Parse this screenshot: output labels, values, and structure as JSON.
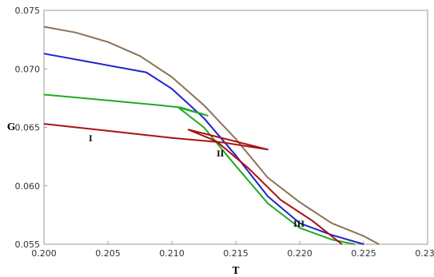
{
  "chart_data": {
    "type": "line",
    "title": "",
    "xlabel": "T",
    "ylabel": "G",
    "xlim": [
      0.2,
      0.23
    ],
    "ylim": [
      0.055,
      0.075
    ],
    "xticks": [
      "0.200",
      "0.205",
      "0.210",
      "0.215",
      "0.220",
      "0.225",
      "0.230"
    ],
    "yticks": [
      "0.055",
      "0.060",
      "0.065",
      "0.070",
      "0.075"
    ],
    "grid": false,
    "legend": "none",
    "annotations": [
      {
        "text": "I",
        "x": 0.2035,
        "y": 0.0638
      },
      {
        "text": "II",
        "x": 0.2135,
        "y": 0.0625
      },
      {
        "text": "III",
        "x": 0.2195,
        "y": 0.0565
      }
    ],
    "series": [
      {
        "color": "#8B7355",
        "points": [
          [
            0.2,
            0.0736
          ],
          [
            0.2025,
            0.0731
          ],
          [
            0.205,
            0.0723
          ],
          [
            0.2075,
            0.0711
          ],
          [
            0.21,
            0.0693
          ],
          [
            0.2125,
            0.0669
          ],
          [
            0.215,
            0.064
          ],
          [
            0.2175,
            0.0607
          ],
          [
            0.22,
            0.0586
          ],
          [
            0.2225,
            0.0568
          ],
          [
            0.225,
            0.0557
          ],
          [
            0.2262,
            0.055
          ]
        ]
      },
      {
        "color": "#2222CC",
        "points": [
          [
            0.2,
            0.0713
          ],
          [
            0.204,
            0.0705
          ],
          [
            0.208,
            0.0697
          ],
          [
            0.21,
            0.0683
          ],
          [
            0.2125,
            0.0658
          ],
          [
            0.215,
            0.0626
          ],
          [
            0.2175,
            0.0591
          ],
          [
            0.22,
            0.0568
          ],
          [
            0.2225,
            0.0558
          ],
          [
            0.225,
            0.055
          ]
        ]
      },
      {
        "color": "#22AA22",
        "points": [
          [
            0.2,
            0.0678
          ],
          [
            0.205,
            0.0673
          ],
          [
            0.209,
            0.0669
          ],
          [
            0.2107,
            0.0667
          ],
          [
            0.2128,
            0.066
          ],
          [
            0.2105,
            0.0667
          ],
          [
            0.2125,
            0.065
          ],
          [
            0.215,
            0.0617
          ],
          [
            0.2175,
            0.0585
          ],
          [
            0.22,
            0.0564
          ],
          [
            0.2225,
            0.0554
          ],
          [
            0.2243,
            0.055
          ]
        ]
      },
      {
        "color": "#AA1111",
        "points": [
          [
            0.2,
            0.0653
          ],
          [
            0.205,
            0.0647
          ],
          [
            0.21,
            0.0641
          ],
          [
            0.214,
            0.0637
          ],
          [
            0.2175,
            0.0631
          ],
          [
            0.2113,
            0.0648
          ],
          [
            0.2135,
            0.0638
          ],
          [
            0.216,
            0.0615
          ],
          [
            0.2185,
            0.0588
          ],
          [
            0.221,
            0.057
          ],
          [
            0.2233,
            0.055
          ]
        ]
      }
    ]
  }
}
